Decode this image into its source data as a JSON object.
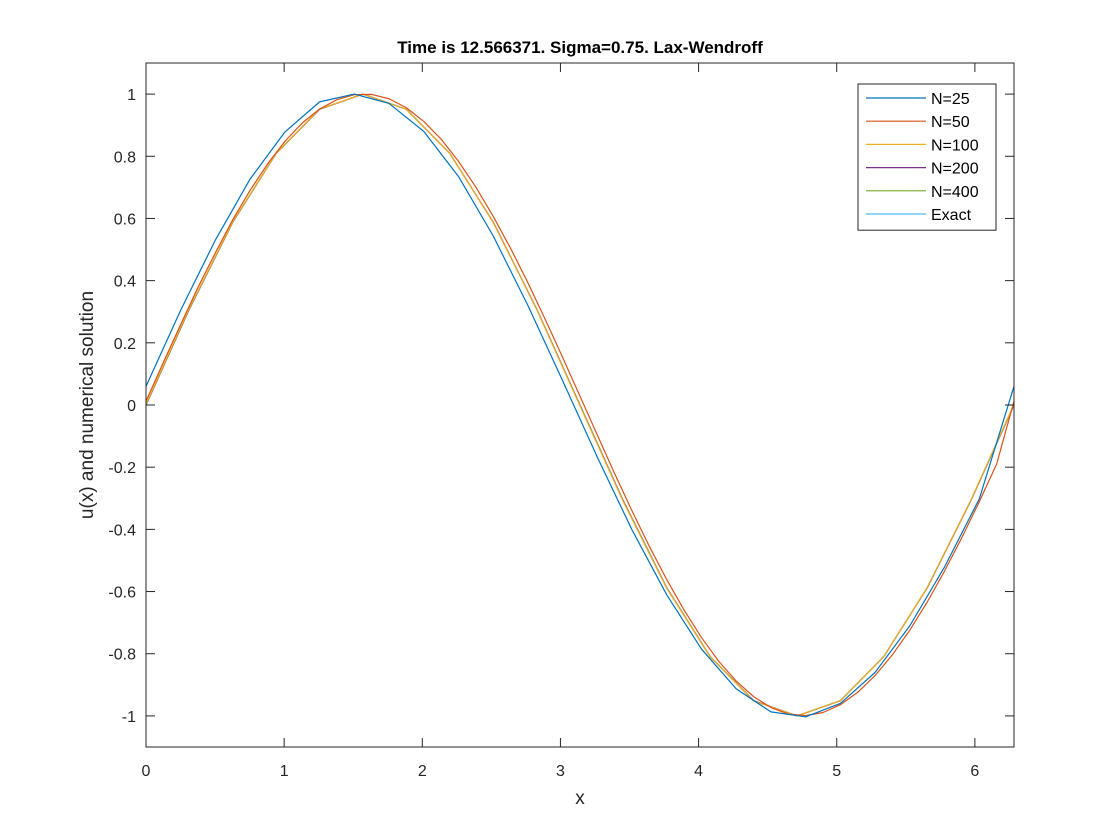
{
  "chart_data": {
    "type": "line",
    "title": "Time is 12.566371. Sigma=0.75. Lax-Wendroff",
    "xlabel": "x",
    "ylabel": "u(x) and numerical solution",
    "xlim": [
      0,
      6.2832
    ],
    "ylim": [
      -1.1,
      1.1
    ],
    "xticks": [
      0,
      1,
      2,
      3,
      4,
      5,
      6
    ],
    "xtick_labels": [
      "0",
      "1",
      "2",
      "3",
      "4",
      "5",
      "6"
    ],
    "yticks": [
      -1,
      -0.8,
      -0.6,
      -0.4,
      -0.2,
      0,
      0.2,
      0.4,
      0.6,
      0.8,
      1
    ],
    "ytick_labels": [
      "-1",
      "-0.8",
      "-0.6",
      "-0.4",
      "-0.2",
      "0",
      "0.2",
      "0.4",
      "0.6",
      "0.8",
      "1"
    ],
    "grid": false,
    "legend_position": "top-right",
    "box": true,
    "series": [
      {
        "name": "N=25",
        "color": "#0072BD",
        "x": [
          0,
          0.2513,
          0.5027,
          0.754,
          1.0053,
          1.2566,
          1.508,
          1.7593,
          2.0106,
          2.2619,
          2.5133,
          2.7646,
          3.0159,
          3.2673,
          3.5186,
          3.7699,
          4.0212,
          4.2726,
          4.5239,
          4.7752,
          5.0265,
          5.2779,
          5.5292,
          5.7805,
          6.0319,
          6.2832
        ],
        "y": [
          0.06,
          0.305,
          0.531,
          0.727,
          0.878,
          0.975,
          1.0,
          0.97,
          0.88,
          0.735,
          0.544,
          0.32,
          0.078,
          -0.168,
          -0.402,
          -0.611,
          -0.785,
          -0.913,
          -0.987,
          -1.003,
          -0.96,
          -0.86,
          -0.71,
          -0.521,
          -0.302,
          0.06
        ]
      },
      {
        "name": "N=50",
        "color": "#D95319",
        "x": [
          0,
          0.1257,
          0.2513,
          0.377,
          0.5027,
          0.6283,
          0.754,
          0.8796,
          1.0053,
          1.131,
          1.2566,
          1.3823,
          1.508,
          1.6336,
          1.7593,
          1.885,
          2.0106,
          2.1363,
          2.2619,
          2.3876,
          2.5133,
          2.6389,
          2.7646,
          2.8903,
          3.0159,
          3.1416,
          3.2673,
          3.3929,
          3.5186,
          3.6442,
          3.7699,
          3.8956,
          4.0212,
          4.1469,
          4.2726,
          4.3982,
          4.5239,
          4.6496,
          4.7752,
          4.9009,
          5.0265,
          5.1522,
          5.2779,
          5.4035,
          5.5292,
          5.6549,
          5.7805,
          5.9062,
          6.0319,
          6.1575,
          6.2832
        ],
        "y": [
          0.012,
          0.137,
          0.259,
          0.379,
          0.49,
          0.596,
          0.691,
          0.775,
          0.848,
          0.907,
          0.952,
          0.982,
          0.998,
          0.999,
          0.985,
          0.956,
          0.912,
          0.855,
          0.784,
          0.701,
          0.607,
          0.504,
          0.393,
          0.275,
          0.153,
          0.028,
          -0.097,
          -0.221,
          -0.341,
          -0.455,
          -0.562,
          -0.66,
          -0.748,
          -0.825,
          -0.888,
          -0.938,
          -0.973,
          -0.994,
          -0.999,
          -0.989,
          -0.964,
          -0.924,
          -0.87,
          -0.803,
          -0.724,
          -0.634,
          -0.534,
          -0.426,
          -0.311,
          -0.19,
          0.012
        ]
      },
      {
        "name": "N=100",
        "color": "#EDB120",
        "x": [
          0,
          0.3142,
          0.6283,
          0.9425,
          1.2566,
          1.5708,
          1.885,
          2.1991,
          2.5133,
          2.8274,
          3.1416,
          3.4558,
          3.7699,
          4.0841,
          4.3982,
          4.7124,
          5.0265,
          5.3407,
          5.6549,
          5.969,
          6.2832
        ],
        "y": [
          0.003,
          0.312,
          0.59,
          0.81,
          0.952,
          1.0,
          0.951,
          0.809,
          0.587,
          0.308,
          -0.003,
          -0.312,
          -0.59,
          -0.81,
          -0.952,
          -1.0,
          -0.951,
          -0.809,
          -0.587,
          -0.308,
          0.003
        ]
      },
      {
        "name": "N=200",
        "color": "#7E2F8E",
        "x": [
          0,
          0.3142,
          0.6283,
          0.9425,
          1.2566,
          1.5708,
          1.885,
          2.1991,
          2.5133,
          2.8274,
          3.1416,
          3.4558,
          3.7699,
          4.0841,
          4.3982,
          4.7124,
          5.0265,
          5.3407,
          5.6549,
          5.969,
          6.2832
        ],
        "y": [
          0.001,
          0.31,
          0.589,
          0.81,
          0.951,
          1.0,
          0.951,
          0.809,
          0.588,
          0.309,
          -0.001,
          -0.31,
          -0.589,
          -0.81,
          -0.951,
          -1.0,
          -0.951,
          -0.809,
          -0.588,
          -0.309,
          0.001
        ]
      },
      {
        "name": "N=400",
        "color": "#77AC30",
        "x": [
          0,
          0.3142,
          0.6283,
          0.9425,
          1.2566,
          1.5708,
          1.885,
          2.1991,
          2.5133,
          2.8274,
          3.1416,
          3.4558,
          3.7699,
          4.0841,
          4.3982,
          4.7124,
          5.0265,
          5.3407,
          5.6549,
          5.969,
          6.2832
        ],
        "y": [
          0.0,
          0.309,
          0.588,
          0.809,
          0.951,
          1.0,
          0.951,
          0.809,
          0.588,
          0.309,
          0.0,
          -0.309,
          -0.588,
          -0.809,
          -0.951,
          -1.0,
          -0.951,
          -0.809,
          -0.588,
          -0.309,
          0.0
        ]
      },
      {
        "name": "Exact",
        "color": "#4DBEEE",
        "x": [
          0,
          0.3142,
          0.6283,
          0.9425,
          1.2566,
          1.5708,
          1.885,
          2.1991,
          2.5133,
          2.8274,
          3.1416,
          3.4558,
          3.7699,
          4.0841,
          4.3982,
          4.7124,
          5.0265,
          5.3407,
          5.6549,
          5.969,
          6.2832
        ],
        "y": [
          0.0,
          0.309,
          0.588,
          0.809,
          0.951,
          1.0,
          0.951,
          0.809,
          0.588,
          0.309,
          0.0,
          -0.309,
          -0.588,
          -0.809,
          -0.951,
          -1.0,
          -0.951,
          -0.809,
          -0.588,
          -0.309,
          0.0
        ]
      }
    ]
  }
}
